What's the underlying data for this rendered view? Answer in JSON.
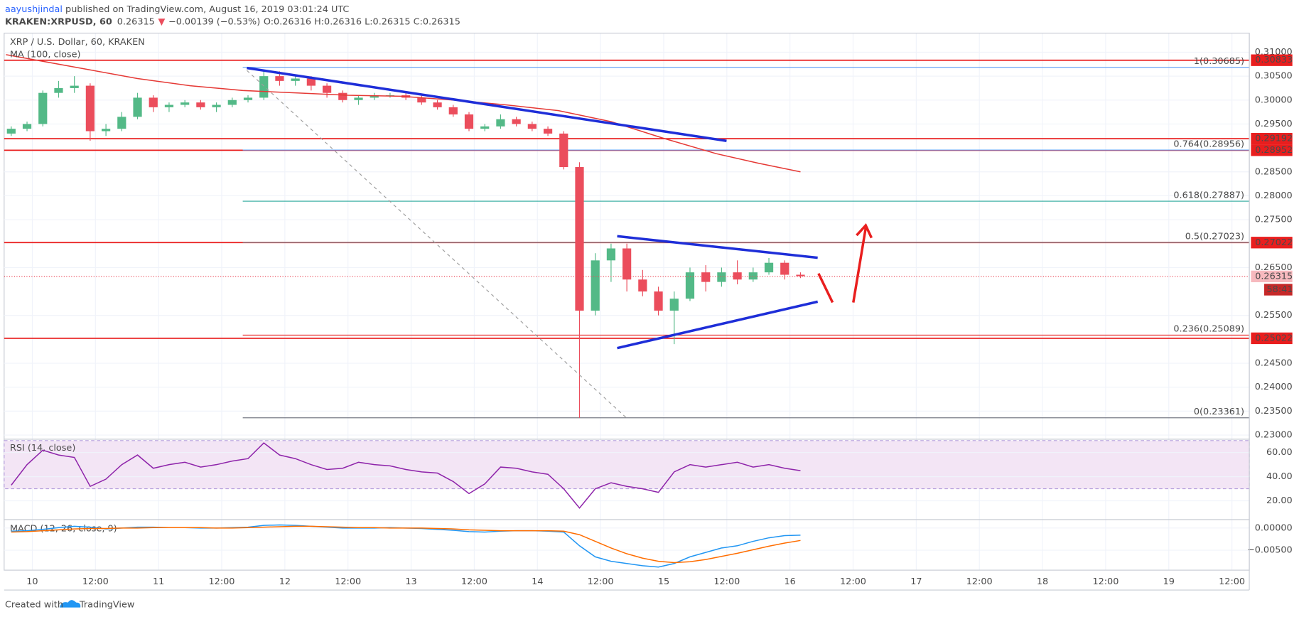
{
  "header": {
    "author": "aayushjindal",
    "published": " published on TradingView.com, August 16, 2019 03:01:24 UTC",
    "symbol": "KRAKEN:XRPUSD, 60",
    "last": "0.26315",
    "arrow": "▼",
    "change": "−0.00139 (−0.53%)",
    "ohlc": "O:0.26316 H:0.26316 L:0.26315 C:0.26315"
  },
  "footer": {
    "created": "Created with",
    "brand": "TradingView"
  },
  "chart_data": [
    {
      "type": "candlestick",
      "title": "XRP / U.S. Dollar, 60, KRAKEN",
      "up_color": "#53b987",
      "down_color": "#eb4d5c",
      "x": [
        -4,
        -1,
        2,
        5,
        8,
        11,
        14,
        17,
        20,
        23,
        26,
        29,
        32,
        35,
        38,
        41,
        44,
        47,
        50,
        53,
        56,
        59,
        62,
        65,
        68,
        71,
        74,
        77,
        80,
        83,
        86,
        89,
        92,
        95,
        98,
        101,
        104,
        107,
        110,
        113,
        116,
        119,
        122,
        125,
        128,
        131,
        134,
        137,
        140,
        143,
        146
      ],
      "open": [
        0.293,
        0.294,
        0.295,
        0.3015,
        0.3025,
        0.303,
        0.2935,
        0.294,
        0.2965,
        0.3005,
        0.2985,
        0.299,
        0.2995,
        0.2985,
        0.299,
        0.3,
        0.3005,
        0.305,
        0.304,
        0.3045,
        0.303,
        0.3015,
        0.3,
        0.3005,
        0.301,
        0.301,
        0.3005,
        0.2995,
        0.2985,
        0.297,
        0.294,
        0.2945,
        0.296,
        0.295,
        0.294,
        0.293,
        0.286,
        0.256,
        0.2665,
        0.269,
        0.2625,
        0.26,
        0.256,
        0.2585,
        0.264,
        0.262,
        0.264,
        0.2625,
        0.264,
        0.266,
        0.2635
      ],
      "high": [
        0.2945,
        0.2955,
        0.302,
        0.304,
        0.305,
        0.3035,
        0.295,
        0.2975,
        0.3015,
        0.301,
        0.2995,
        0.3,
        0.3,
        0.2995,
        0.3005,
        0.301,
        0.306,
        0.306,
        0.305,
        0.305,
        0.3035,
        0.302,
        0.301,
        0.3015,
        0.3015,
        0.3015,
        0.301,
        0.3,
        0.299,
        0.2975,
        0.295,
        0.297,
        0.2965,
        0.2955,
        0.2945,
        0.2935,
        0.287,
        0.268,
        0.27,
        0.27,
        0.2645,
        0.261,
        0.26,
        0.265,
        0.2655,
        0.265,
        0.2665,
        0.265,
        0.267,
        0.2665,
        0.264
      ],
      "low": [
        0.2925,
        0.2935,
        0.2945,
        0.3005,
        0.3015,
        0.2915,
        0.2925,
        0.2935,
        0.296,
        0.2975,
        0.2975,
        0.2985,
        0.298,
        0.2975,
        0.2985,
        0.2995,
        0.3,
        0.303,
        0.303,
        0.302,
        0.3005,
        0.2995,
        0.299,
        0.3,
        0.3005,
        0.3,
        0.299,
        0.298,
        0.2965,
        0.2935,
        0.2935,
        0.294,
        0.2945,
        0.2935,
        0.2925,
        0.2855,
        0.2336,
        0.255,
        0.262,
        0.26,
        0.259,
        0.255,
        0.249,
        0.258,
        0.26,
        0.261,
        0.2615,
        0.262,
        0.2635,
        0.2625,
        0.2628
      ],
      "close": [
        0.294,
        0.295,
        0.3015,
        0.3025,
        0.303,
        0.2935,
        0.294,
        0.2965,
        0.3005,
        0.2985,
        0.299,
        0.2995,
        0.2985,
        0.299,
        0.3,
        0.3005,
        0.305,
        0.304,
        0.3045,
        0.303,
        0.3015,
        0.3,
        0.3005,
        0.301,
        0.301,
        0.3005,
        0.2995,
        0.2985,
        0.297,
        0.294,
        0.2945,
        0.296,
        0.295,
        0.294,
        0.293,
        0.286,
        0.256,
        0.2665,
        0.269,
        0.2625,
        0.26,
        0.256,
        0.2585,
        0.264,
        0.262,
        0.264,
        0.2625,
        0.264,
        0.266,
        0.2635,
        0.2632
      ],
      "xlim": [
        -5.35,
        231.3
      ],
      "xticks": [
        {
          "value": 0,
          "label": "10"
        },
        {
          "value": 12,
          "label": "12:00"
        },
        {
          "value": 24,
          "label": "11"
        },
        {
          "value": 36,
          "label": "12:00"
        },
        {
          "value": 48,
          "label": "12"
        },
        {
          "value": 60,
          "label": "12:00"
        },
        {
          "value": 72,
          "label": "13"
        },
        {
          "value": 84,
          "label": "12:00"
        },
        {
          "value": 96,
          "label": "14"
        },
        {
          "value": 108,
          "label": "12:00"
        },
        {
          "value": 120,
          "label": "15"
        },
        {
          "value": 132,
          "label": "12:00"
        },
        {
          "value": 144,
          "label": "16"
        },
        {
          "value": 156,
          "label": "12:00"
        },
        {
          "value": 168,
          "label": "17"
        },
        {
          "value": 180,
          "label": "12:00"
        },
        {
          "value": 192,
          "label": "18"
        },
        {
          "value": 204,
          "label": "12:00"
        },
        {
          "value": 216,
          "label": "19"
        },
        {
          "value": 228,
          "label": "12:00"
        }
      ],
      "ylim": [
        0.22913,
        0.31398
      ],
      "yticks": [
        {
          "value": 0.23,
          "label": "0.23000"
        },
        {
          "value": 0.235,
          "label": "0.23500"
        },
        {
          "value": 0.24,
          "label": "0.24000"
        },
        {
          "value": 0.245,
          "label": "0.24500"
        },
        {
          "value": 0.255,
          "label": "0.25500"
        },
        {
          "value": 0.265,
          "label": "0.26500"
        },
        {
          "value": 0.275,
          "label": "0.27500"
        },
        {
          "value": 0.28,
          "label": "0.28000"
        },
        {
          "value": 0.285,
          "label": "0.28500"
        },
        {
          "value": 0.295,
          "label": "0.29500"
        },
        {
          "value": 0.3,
          "label": "0.30000"
        },
        {
          "value": 0.305,
          "label": "0.30500"
        },
        {
          "value": 0.31,
          "label": "0.31000"
        }
      ],
      "grid": true,
      "ma": {
        "name": "MA (100, close)",
        "color": "#e53935",
        "x": [
          -5,
          10,
          20,
          30,
          40,
          50,
          60,
          70,
          80,
          90,
          100,
          110,
          120,
          130,
          138,
          146
        ],
        "values": [
          0.3095,
          0.3065,
          0.3045,
          0.303,
          0.302,
          0.3015,
          0.301,
          0.3008,
          0.3,
          0.299,
          0.2978,
          0.2955,
          0.292,
          0.2888,
          0.2868,
          0.285
        ]
      },
      "levels_color": "#e91e1e",
      "levels": [
        0.30833,
        0.29192,
        0.28952,
        0.27022,
        0.25022
      ],
      "fib": [
        {
          "value": 0.30685,
          "label": "1(0.30685)"
        },
        {
          "value": 0.28956,
          "label": "0.764(0.28956)"
        },
        {
          "value": 0.27887,
          "label": "0.618(0.27887)"
        },
        {
          "value": 0.27023,
          "label": "0.5(0.27023)"
        },
        {
          "value": 0.25089,
          "label": "0.236(0.25089)"
        },
        {
          "value": 0.23361,
          "label": "0(0.23361)"
        }
      ],
      "fib_colors": [
        "#5b9cf6",
        "#5b9cf6",
        "#26a69a",
        "#787b86",
        "#e91e1e",
        "#787b86"
      ],
      "last_price": 0.26315,
      "countdown": "58:41"
    },
    {
      "type": "line",
      "title": "RSI (14, close)",
      "color": "#8e24aa",
      "band": [
        30,
        70
      ],
      "x": [
        -4,
        -1,
        2,
        5,
        8,
        11,
        14,
        17,
        20,
        23,
        26,
        29,
        32,
        35,
        38,
        41,
        44,
        47,
        50,
        53,
        56,
        59,
        62,
        65,
        68,
        71,
        74,
        77,
        80,
        83,
        86,
        89,
        92,
        95,
        98,
        101,
        104,
        107,
        110,
        113,
        116,
        119,
        122,
        125,
        128,
        131,
        134,
        137,
        140,
        143,
        146
      ],
      "values": [
        33,
        50,
        62,
        58,
        56,
        32,
        38,
        50,
        58,
        47,
        50,
        52,
        48,
        50,
        53,
        55,
        68,
        58,
        55,
        50,
        46,
        47,
        52,
        50,
        49,
        46,
        44,
        43,
        36,
        26,
        34,
        48,
        47,
        44,
        42,
        30,
        14,
        30,
        35,
        32,
        30,
        27,
        44,
        50,
        48,
        50,
        52,
        48,
        50,
        47,
        45
      ],
      "ylim": [
        4.4,
        71.1
      ],
      "yticks": [
        {
          "value": 20,
          "label": "20.00"
        },
        {
          "value": 40,
          "label": "40.00"
        },
        {
          "value": 60,
          "label": "60.00"
        }
      ]
    },
    {
      "type": "line",
      "title": "MACD (12, 26, close, 9)",
      "x": [
        -4,
        -1,
        2,
        5,
        8,
        11,
        14,
        17,
        20,
        23,
        26,
        29,
        32,
        35,
        38,
        41,
        44,
        47,
        50,
        53,
        56,
        59,
        62,
        65,
        68,
        71,
        74,
        77,
        80,
        83,
        86,
        89,
        92,
        95,
        98,
        101,
        104,
        107,
        110,
        113,
        116,
        119,
        122,
        125,
        128,
        131,
        134,
        137,
        140,
        143,
        146
      ],
      "series": [
        {
          "color": "#2196f3",
          "values": [
            -0.0007,
            -0.0006,
            -0.0003,
            0.0001,
            0.0004,
            0.0002,
            -0.0002,
            0,
            0.0002,
            0.0002,
            0.0001,
            0.0001,
            0,
            0,
            0.0001,
            0.0002,
            0.0006,
            0.0007,
            0.0006,
            0.0004,
            0.0002,
            0,
            0,
            0,
            0.0001,
            0,
            -0.0001,
            -0.0003,
            -0.0005,
            -0.0008,
            -0.0009,
            -0.0007,
            -0.0006,
            -0.0006,
            -0.0007,
            -0.0009,
            -0.004,
            -0.0065,
            -0.0075,
            -0.008,
            -0.0085,
            -0.0088,
            -0.008,
            -0.0065,
            -0.0055,
            -0.0045,
            -0.004,
            -0.003,
            -0.0022,
            -0.0017,
            -0.0016
          ]
        },
        {
          "color": "#ff6d00",
          "values": [
            -0.0009,
            -0.0008,
            -0.0006,
            -0.0004,
            -0.0002,
            -0.0001,
            -0.0001,
            0,
            0,
            0.0001,
            0.0001,
            0.0001,
            0.0001,
            0,
            0,
            0.0001,
            0.0002,
            0.0003,
            0.0004,
            0.0004,
            0.0003,
            0.0002,
            0.0001,
            0.0001,
            0,
            0,
            0,
            -0.0001,
            -0.0002,
            -0.0004,
            -0.0005,
            -0.0006,
            -0.0006,
            -0.0006,
            -0.0006,
            -0.0007,
            -0.0015,
            -0.003,
            -0.0045,
            -0.0058,
            -0.0068,
            -0.0075,
            -0.0078,
            -0.0076,
            -0.0071,
            -0.0064,
            -0.0057,
            -0.0049,
            -0.0041,
            -0.0034,
            -0.0028
          ]
        }
      ],
      "ylim": [
        -0.0095,
        0.0019
      ],
      "yticks": [
        {
          "value": 0,
          "label": "0.00000"
        },
        {
          "value": -0.005,
          "label": "−0.00500"
        }
      ]
    }
  ]
}
